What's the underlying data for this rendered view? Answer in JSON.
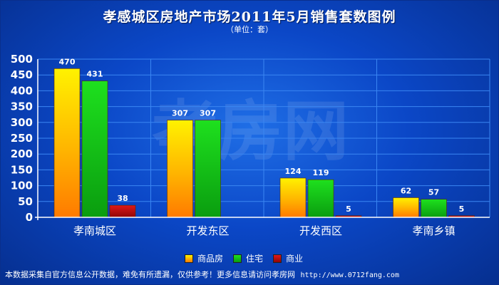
{
  "header": {
    "title": "孝感城区房地产市场2011年5月销售套数图例",
    "unit": "（单位：套）"
  },
  "watermark": "孝房网",
  "colors": {
    "background": "#0b47c7",
    "grid": "#2f7ef0",
    "series": [
      "#ffb300",
      "#10c21a",
      "#c41212"
    ]
  },
  "chart_data": {
    "type": "bar",
    "title": "孝感城区房地产市场2011年5月销售套数图例",
    "subtitle": "（单位：套）",
    "categories": [
      "孝南城区",
      "开发东区",
      "开发西区",
      "孝南乡镇"
    ],
    "series": [
      {
        "name": "商品房",
        "values": [
          470,
          307,
          124,
          62
        ]
      },
      {
        "name": "住宅",
        "values": [
          431,
          307,
          119,
          57
        ]
      },
      {
        "name": "商业",
        "values": [
          38,
          0,
          5,
          5
        ]
      }
    ],
    "data_labels": [
      [
        "470",
        "307",
        "124",
        "62"
      ],
      [
        "431",
        "307",
        "119",
        "57"
      ],
      [
        "38",
        "",
        "5",
        "5"
      ]
    ],
    "ylim": [
      0,
      500
    ],
    "yticks": [
      0,
      50,
      100,
      150,
      200,
      250,
      300,
      350,
      400,
      450,
      500
    ],
    "grid": true,
    "legend_position": "bottom"
  },
  "footer": {
    "text": "本数据采集自官方信息公开数据，难免有所遗漏，仅供参考！更多信息请访问孝房网",
    "url": "http://www.0712fang.com"
  }
}
